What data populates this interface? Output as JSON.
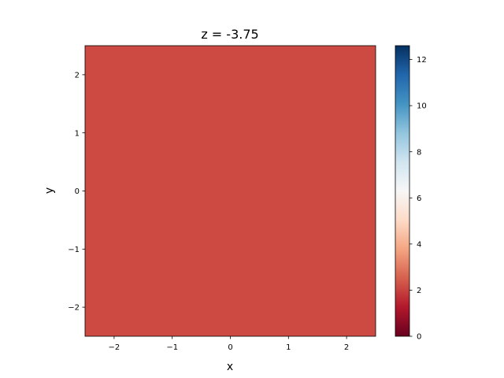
{
  "chart_data": {
    "type": "heatmap",
    "title": "z = -3.75",
    "xlabel": "x",
    "ylabel": "y",
    "xlim": [
      -2.5,
      2.5
    ],
    "ylim": [
      -2.5,
      2.5
    ],
    "x_ticks": [
      -2,
      -1,
      0,
      1,
      2
    ],
    "y_ticks": [
      -2,
      -1,
      0,
      1,
      2
    ],
    "x_tick_labels": [
      "−2",
      "−1",
      "0",
      "1",
      "2"
    ],
    "y_tick_labels": [
      "−2",
      "−1",
      "0",
      "1",
      "2"
    ],
    "field_value": 2.5,
    "field_color": "#cd4a42",
    "grid": false,
    "colorbar": {
      "colormap": "RdBu",
      "range": [
        0,
        12.6
      ],
      "ticks": [
        0,
        2,
        4,
        6,
        8,
        10,
        12
      ],
      "tick_labels": [
        "0",
        "2",
        "4",
        "6",
        "8",
        "10",
        "12"
      ]
    }
  }
}
